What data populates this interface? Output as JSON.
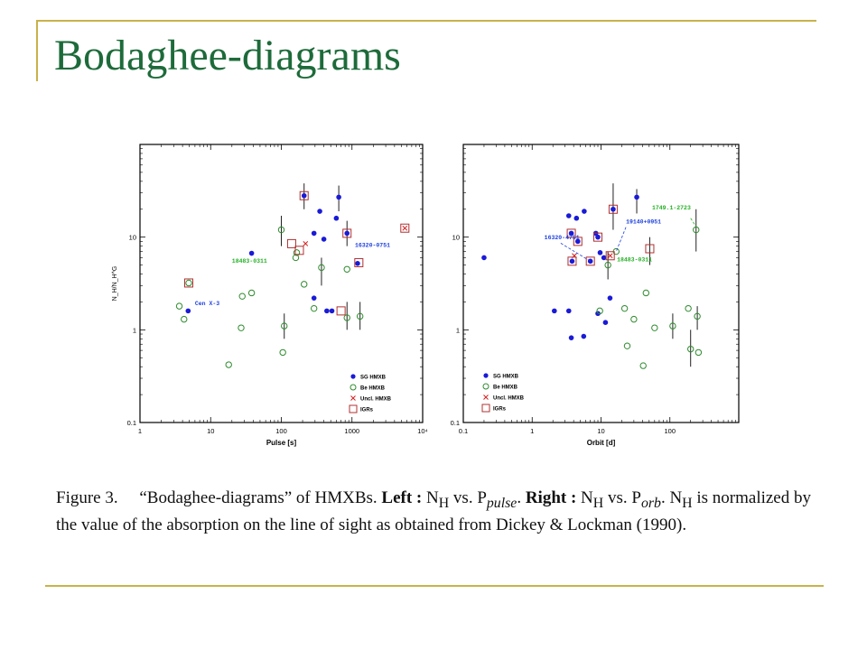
{
  "slide": {
    "title": "Bodaghee-diagrams"
  },
  "caption": {
    "label": "Figure 3.",
    "text_html": "“Bodaghee-diagrams” of HMXBs. <b>Left :</b> N<sub>H</sub> vs. P<sub><i>pulse</i></sub>. <b>Right :</b> N<sub>H</sub> vs. P<sub><i>orb</i></sub>. N<sub>H</sub> is normalized by the value of the absorption on the line of sight as obtained from Dickey &amp; Lockman (1990)."
  },
  "colors": {
    "sg": "#1a1ad8",
    "be": "#2e8b2e",
    "uncl": "#d42020",
    "igr": "#b03030",
    "annot_blue": "#1a3ee0",
    "annot_green": "#22b022",
    "rule": "#c8b24a",
    "title": "#1d6b3a"
  },
  "chart_data": [
    {
      "type": "scatter",
      "title": "",
      "xlabel": "Pulse [s]",
      "ylabel": "N_H/N_H^G",
      "xscale": "log",
      "yscale": "log",
      "xlim": [
        1,
        10000
      ],
      "ylim": [
        0.1,
        100
      ],
      "x_ticks": [
        "1",
        "10",
        "100",
        "1000",
        "10⁴"
      ],
      "y_ticks": [
        "0.1",
        "1",
        "10"
      ],
      "legend": {
        "position": "bottom-right",
        "entries": [
          {
            "name": "SG HMXB",
            "symbol": "filled-circle"
          },
          {
            "name": "Be HMXB",
            "symbol": "open-circle"
          },
          {
            "name": "Uncl. HMXB",
            "symbol": "cross"
          },
          {
            "name": "IGRs",
            "symbol": "square"
          }
        ]
      },
      "annotations": [
        {
          "text": "Cen X-3",
          "color": "blue",
          "x": 6,
          "y": 1.85
        },
        {
          "text": "18483-0311",
          "color": "green",
          "x": 20,
          "y": 5.3
        },
        {
          "text": "16320-0751",
          "color": "blue",
          "x": 1100,
          "y": 7.8
        }
      ],
      "series": [
        {
          "name": "SG HMXB",
          "points": [
            [
              4.8,
              1.6
            ],
            [
              38,
              6.7
            ],
            [
              210,
              28
            ],
            [
              290,
              11
            ],
            [
              350,
              19
            ],
            [
              400,
              9.5
            ],
            [
              520,
              1.6
            ],
            [
              600,
              16
            ],
            [
              650,
              27
            ],
            [
              850,
              11
            ],
            [
              1200,
              5.2
            ],
            [
              290,
              2.2
            ],
            [
              440,
              1.6
            ]
          ]
        },
        {
          "name": "Be HMXB",
          "points": [
            [
              3.6,
              1.8
            ],
            [
              4.2,
              1.3
            ],
            [
              4.9,
              3.2
            ],
            [
              18,
              0.42
            ],
            [
              27,
              1.05
            ],
            [
              28,
              2.3
            ],
            [
              38,
              2.5
            ],
            [
              100,
              12
            ],
            [
              105,
              0.57
            ],
            [
              110,
              1.1
            ],
            [
              160,
              6
            ],
            [
              165,
              6.8
            ],
            [
              210,
              3.1
            ],
            [
              290,
              1.7
            ],
            [
              370,
              4.7
            ],
            [
              850,
              4.5
            ],
            [
              850,
              1.35
            ],
            [
              1300,
              1.4
            ]
          ]
        },
        {
          "name": "Uncl. HMXB",
          "points": [
            [
              5600,
              12.5
            ],
            [
              220,
              8.5
            ]
          ]
        },
        {
          "name": "IGRs",
          "points": [
            [
              4.9,
              3.2
            ],
            [
              140,
              8.5
            ],
            [
              180,
              7.2
            ],
            [
              210,
              28
            ],
            [
              700,
              1.6
            ],
            [
              850,
              11
            ],
            [
              1250,
              5.3
            ],
            [
              5600,
              12.5
            ]
          ]
        }
      ]
    },
    {
      "type": "scatter",
      "title": "",
      "xlabel": "Orbit [d]",
      "ylabel": "",
      "xscale": "log",
      "yscale": "log",
      "xlim": [
        0.1,
        1000
      ],
      "ylim": [
        0.1,
        100
      ],
      "x_ticks": [
        "0.1",
        "1",
        "10",
        "100"
      ],
      "y_ticks": [
        "0.1",
        "1",
        "10"
      ],
      "legend": {
        "position": "bottom-left",
        "entries": [
          {
            "name": "SG HMXB",
            "symbol": "filled-circle"
          },
          {
            "name": "Be HMXB",
            "symbol": "open-circle"
          },
          {
            "name": "Uncl. HMXB",
            "symbol": "cross"
          },
          {
            "name": "IGRs",
            "symbol": "square"
          }
        ]
      },
      "annotations": [
        {
          "text": "1749.1-2723",
          "color": "green",
          "x": 55,
          "y": 20
        },
        {
          "text": "19140+0951",
          "color": "blue",
          "x": 23,
          "y": 14
        },
        {
          "text": "16320-4751",
          "color": "blue",
          "x": 1.5,
          "y": 9.5
        },
        {
          "text": "18483-0311",
          "color": "green",
          "x": 17,
          "y": 5.5
        }
      ],
      "series": [
        {
          "name": "SG HMXB",
          "points": [
            [
              0.2,
              6
            ],
            [
              3.4,
              17
            ],
            [
              3.7,
              11
            ],
            [
              3.8,
              5.5
            ],
            [
              4.4,
              16
            ],
            [
              4.6,
              9
            ],
            [
              5.7,
              19
            ],
            [
              7,
              5.5
            ],
            [
              8.4,
              11
            ],
            [
              9,
              10
            ],
            [
              9.7,
              6.8
            ],
            [
              11,
              6
            ],
            [
              15,
              20
            ],
            [
              33,
              27
            ],
            [
              2.1,
              1.6
            ],
            [
              3.4,
              1.6
            ],
            [
              3.7,
              0.82
            ],
            [
              5.6,
              0.85
            ],
            [
              9,
              1.5
            ],
            [
              11.6,
              1.2
            ],
            [
              13.5,
              2.2
            ]
          ]
        },
        {
          "name": "Be HMXB",
          "points": [
            [
              9.6,
              1.6
            ],
            [
              12.6,
              5
            ],
            [
              16.6,
              7
            ],
            [
              22,
              1.7
            ],
            [
              24,
              0.67
            ],
            [
              30,
              1.3
            ],
            [
              41,
              0.41
            ],
            [
              45,
              2.5
            ],
            [
              60,
              1.05
            ],
            [
              110,
              1.1
            ],
            [
              185,
              1.7
            ],
            [
              200,
              0.62
            ],
            [
              240,
              12
            ],
            [
              250,
              1.4
            ],
            [
              260,
              0.57
            ]
          ]
        },
        {
          "name": "Uncl. HMXB",
          "points": [
            [
              4.1,
              6.3
            ],
            [
              13.6,
              6.3
            ]
          ]
        },
        {
          "name": "IGRs",
          "points": [
            [
              3.7,
              11
            ],
            [
              3.8,
              5.5
            ],
            [
              4.6,
              9
            ],
            [
              7,
              5.5
            ],
            [
              9,
              10
            ],
            [
              13.6,
              6.3
            ],
            [
              15,
              20
            ],
            [
              51,
              7.5
            ]
          ]
        }
      ]
    }
  ]
}
